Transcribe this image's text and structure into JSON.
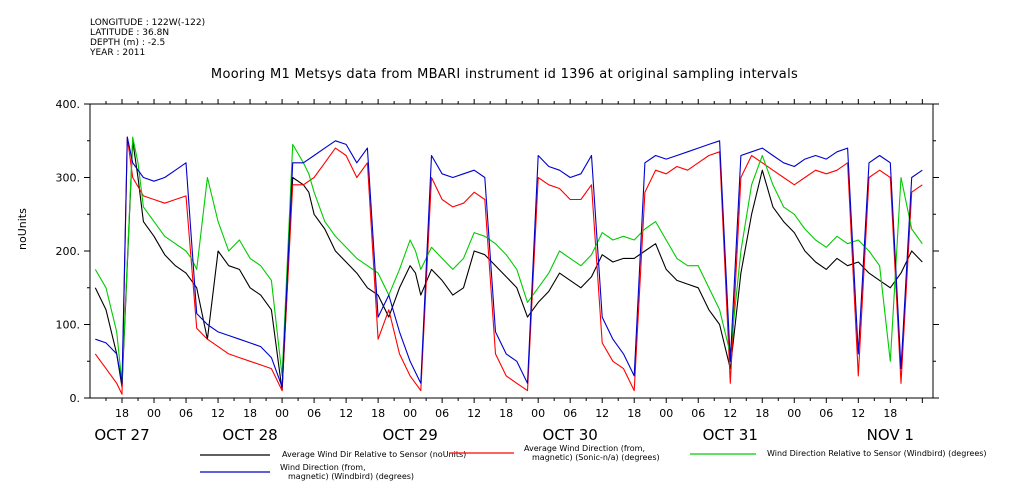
{
  "meta": {
    "longitude": "LONGITUDE : 122W(-122)",
    "latitude": "LATITUDE : 36.8N",
    "depth": "DEPTH (m) : -2.5",
    "year": "YEAR : 2011"
  },
  "chart_data": {
    "type": "line",
    "title": "Mooring M1 Metsys data from MBARI instrument id 1396 at original sampling intervals",
    "ylabel": "noUnits",
    "xlabel": "",
    "ylim": [
      0,
      400
    ],
    "yticks": [
      0,
      100,
      200,
      300,
      400
    ],
    "ytick_labels": [
      "0.",
      "100.",
      "200.",
      "300.",
      "400."
    ],
    "xlim": [
      -6,
      152
    ],
    "hour_ticks": [
      0,
      6,
      12,
      18,
      24,
      30,
      36,
      42,
      48,
      54,
      60,
      66,
      72,
      78,
      84,
      90,
      96,
      102,
      108,
      114,
      120,
      126,
      132,
      138,
      144,
      150
    ],
    "hour_tick_labels": [
      "18",
      "00",
      "06",
      "12",
      "18",
      "00",
      "06",
      "12",
      "18",
      "00",
      "06",
      "12",
      "18",
      "00",
      "06",
      "12",
      "18",
      "00",
      "06",
      "12",
      "18",
      "00",
      "06",
      "12",
      "18",
      ""
    ],
    "day_labels": [
      {
        "x": 0,
        "label": "OCT 27"
      },
      {
        "x": 24,
        "label": "OCT 28"
      },
      {
        "x": 54,
        "label": "OCT 29"
      },
      {
        "x": 84,
        "label": "OCT 30"
      },
      {
        "x": 114,
        "label": "OCT 31"
      },
      {
        "x": 144,
        "label": "NOV  1"
      }
    ],
    "x_units": "hours since OCT 27 18:00 (2011)",
    "grid": false,
    "series": [
      {
        "name": "Average Wind Dir Relative to Sensor (noUnits)",
        "color": "#000000",
        "x": [
          -5,
          -3,
          -1,
          0,
          2,
          3,
          4,
          6,
          8,
          10,
          12,
          13,
          14,
          16,
          18,
          20,
          22,
          24,
          26,
          28,
          30,
          32,
          34,
          35,
          36,
          38,
          40,
          42,
          44,
          46,
          48,
          50,
          52,
          54,
          55,
          56,
          58,
          60,
          62,
          64,
          66,
          68,
          70,
          72,
          74,
          76,
          78,
          80,
          82,
          84,
          86,
          88,
          90,
          92,
          94,
          96,
          98,
          100,
          102,
          104,
          106,
          108,
          110,
          112,
          114,
          116,
          118,
          120,
          122,
          124,
          126,
          128,
          130,
          132,
          134,
          136,
          138,
          140,
          142,
          144,
          146,
          148,
          150
        ],
        "y": [
          150,
          120,
          60,
          15,
          350,
          300,
          240,
          220,
          195,
          180,
          170,
          160,
          150,
          80,
          200,
          180,
          175,
          150,
          140,
          120,
          10,
          300,
          290,
          280,
          250,
          230,
          200,
          185,
          170,
          150,
          140,
          110,
          150,
          180,
          170,
          140,
          175,
          160,
          140,
          150,
          200,
          195,
          180,
          165,
          150,
          110,
          130,
          145,
          170,
          160,
          150,
          165,
          195,
          185,
          190,
          190,
          200,
          210,
          175,
          160,
          155,
          150,
          120,
          100,
          40,
          170,
          250,
          310,
          260,
          240,
          225,
          200,
          185,
          175,
          190,
          180,
          185,
          170,
          160,
          150,
          170,
          200,
          185
        ]
      },
      {
        "name": "Average Wind Direction (from, magnetic) (Sonic-n/a) (degrees)",
        "color": "#ff0000",
        "x": [
          -5,
          -3,
          -1,
          0,
          1,
          2,
          4,
          6,
          8,
          10,
          12,
          14,
          16,
          18,
          20,
          22,
          24,
          26,
          28,
          30,
          32,
          34,
          36,
          38,
          40,
          42,
          44,
          46,
          48,
          50,
          52,
          54,
          56,
          58,
          60,
          62,
          64,
          66,
          68,
          70,
          72,
          74,
          76,
          78,
          80,
          82,
          84,
          86,
          88,
          90,
          92,
          94,
          96,
          98,
          100,
          102,
          104,
          106,
          108,
          110,
          112,
          114,
          116,
          118,
          120,
          122,
          124,
          126,
          128,
          130,
          132,
          134,
          136,
          138,
          140,
          142,
          144,
          146,
          148,
          150
        ],
        "y": [
          60,
          40,
          20,
          5,
          355,
          300,
          275,
          270,
          265,
          270,
          275,
          95,
          80,
          70,
          60,
          55,
          50,
          45,
          40,
          10,
          290,
          290,
          300,
          320,
          340,
          330,
          300,
          320,
          80,
          120,
          60,
          30,
          10,
          300,
          270,
          260,
          265,
          280,
          270,
          60,
          30,
          20,
          10,
          300,
          290,
          285,
          270,
          270,
          290,
          75,
          50,
          40,
          10,
          280,
          310,
          305,
          315,
          310,
          320,
          330,
          335,
          20,
          300,
          330,
          320,
          310,
          300,
          290,
          300,
          310,
          305,
          310,
          320,
          30,
          300,
          310,
          300,
          20,
          280,
          290
        ]
      },
      {
        "name": "Wind Direction Relative to Sensor (Windbird) (degrees)",
        "color": "#00cc00",
        "x": [
          -5,
          -3,
          -1,
          0,
          2,
          3,
          4,
          6,
          8,
          10,
          12,
          13,
          14,
          16,
          18,
          20,
          22,
          24,
          26,
          28,
          30,
          32,
          34,
          35,
          36,
          38,
          40,
          42,
          44,
          46,
          48,
          50,
          52,
          54,
          55,
          56,
          58,
          60,
          62,
          64,
          66,
          68,
          70,
          72,
          74,
          76,
          78,
          80,
          82,
          84,
          86,
          88,
          90,
          92,
          94,
          96,
          98,
          100,
          102,
          104,
          106,
          108,
          110,
          112,
          114,
          116,
          118,
          120,
          122,
          124,
          126,
          128,
          130,
          132,
          134,
          136,
          138,
          140,
          142,
          144,
          146,
          148,
          150
        ],
        "y": [
          175,
          150,
          90,
          20,
          355,
          320,
          260,
          240,
          220,
          210,
          200,
          190,
          175,
          300,
          240,
          200,
          215,
          190,
          180,
          160,
          30,
          345,
          320,
          305,
          280,
          240,
          220,
          205,
          190,
          180,
          170,
          140,
          175,
          215,
          200,
          175,
          205,
          190,
          175,
          190,
          225,
          220,
          210,
          195,
          175,
          130,
          150,
          170,
          200,
          190,
          180,
          195,
          225,
          215,
          220,
          215,
          230,
          240,
          215,
          190,
          180,
          180,
          150,
          120,
          60,
          200,
          290,
          330,
          290,
          260,
          250,
          230,
          215,
          205,
          220,
          210,
          215,
          200,
          180,
          50,
          300,
          230,
          210
        ]
      },
      {
        "name": "Wind Direction (from, magnetic) (Windbird) (degrees)",
        "color": "#0000cc",
        "x": [
          -5,
          -3,
          -1,
          0,
          1,
          2,
          4,
          6,
          8,
          10,
          12,
          14,
          16,
          18,
          20,
          22,
          24,
          26,
          28,
          30,
          32,
          34,
          36,
          38,
          40,
          42,
          44,
          46,
          48,
          50,
          52,
          54,
          56,
          58,
          60,
          62,
          64,
          66,
          68,
          70,
          72,
          74,
          76,
          78,
          80,
          82,
          84,
          86,
          88,
          90,
          92,
          94,
          96,
          98,
          100,
          102,
          104,
          106,
          108,
          110,
          112,
          114,
          116,
          118,
          120,
          122,
          124,
          126,
          128,
          130,
          132,
          134,
          136,
          138,
          140,
          142,
          144,
          146,
          148,
          150
        ],
        "y": [
          80,
          75,
          60,
          20,
          355,
          320,
          300,
          295,
          300,
          310,
          320,
          115,
          100,
          90,
          85,
          80,
          75,
          70,
          55,
          15,
          320,
          320,
          330,
          340,
          350,
          345,
          320,
          340,
          110,
          140,
          90,
          50,
          20,
          330,
          305,
          300,
          305,
          310,
          300,
          90,
          60,
          50,
          20,
          330,
          315,
          310,
          300,
          305,
          330,
          110,
          80,
          60,
          30,
          320,
          330,
          325,
          330,
          335,
          340,
          345,
          350,
          50,
          330,
          335,
          340,
          330,
          320,
          315,
          325,
          330,
          325,
          335,
          340,
          60,
          320,
          330,
          320,
          40,
          300,
          310
        ]
      }
    ]
  }
}
